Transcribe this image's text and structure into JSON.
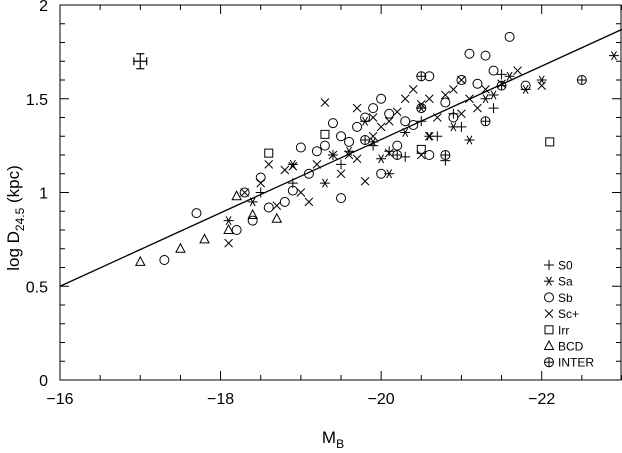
{
  "chart_data": {
    "type": "scatter",
    "title": "",
    "xlabel": {
      "main": "M",
      "sub": "B"
    },
    "ylabel": {
      "pre": "log D",
      "sub": "24.5",
      "post": " (kpc)"
    },
    "xlim": [
      -16,
      -23
    ],
    "ylim": [
      0,
      2
    ],
    "xticks": [
      -16,
      -18,
      -20,
      -22
    ],
    "xtick_labels": [
      "−16",
      "−18",
      "−20",
      "−22"
    ],
    "yticks": [
      0,
      0.5,
      1,
      1.5,
      2
    ],
    "ytick_labels": [
      "0",
      "0.5",
      "1",
      "1.5",
      "2"
    ],
    "grid": false,
    "legend_position": "bottom-right",
    "fit_line": {
      "x": [
        -16,
        -23
      ],
      "y": [
        0.5,
        1.87
      ]
    },
    "error_bar": {
      "x": -17,
      "y": 1.7,
      "xerr": 0.08,
      "yerr": 0.04
    },
    "series": [
      {
        "name": "S0",
        "marker": "plus",
        "points": [
          [
            -18.5,
            1.0
          ],
          [
            -19.4,
            1.2
          ],
          [
            -19.9,
            1.25
          ],
          [
            -20.1,
            1.22
          ],
          [
            -20.3,
            1.19
          ],
          [
            -20.8,
            1.17
          ],
          [
            -20.5,
            1.38
          ],
          [
            -20.9,
            1.42
          ],
          [
            -21.4,
            1.45
          ],
          [
            -21.5,
            1.63
          ],
          [
            -19.5,
            1.15
          ],
          [
            -18.9,
            1.05
          ],
          [
            -20.7,
            1.3
          ],
          [
            -21.0,
            1.35
          ]
        ]
      },
      {
        "name": "Sa",
        "marker": "asterisk",
        "points": [
          [
            -18.1,
            0.85
          ],
          [
            -18.4,
            0.95
          ],
          [
            -18.9,
            1.15
          ],
          [
            -19.3,
            1.05
          ],
          [
            -19.6,
            1.22
          ],
          [
            -19.9,
            1.27
          ],
          [
            -20.1,
            1.1
          ],
          [
            -20.3,
            1.32
          ],
          [
            -20.6,
            1.3
          ],
          [
            -20.9,
            1.35
          ],
          [
            -21.1,
            1.28
          ],
          [
            -21.3,
            1.5
          ],
          [
            -21.6,
            1.62
          ],
          [
            -21.8,
            1.55
          ],
          [
            -22.0,
            1.6
          ],
          [
            -22.9,
            1.73
          ],
          [
            -19.8,
            1.38
          ],
          [
            -20.5,
            1.45
          ],
          [
            -21.4,
            1.52
          ],
          [
            -20.0,
            1.18
          ]
        ]
      },
      {
        "name": "Sb",
        "marker": "circle",
        "points": [
          [
            -17.3,
            0.64
          ],
          [
            -17.7,
            0.89
          ],
          [
            -18.2,
            0.8
          ],
          [
            -18.4,
            0.85
          ],
          [
            -18.6,
            0.92
          ],
          [
            -18.8,
            0.95
          ],
          [
            -18.9,
            1.01
          ],
          [
            -19.1,
            1.1
          ],
          [
            -19.0,
            1.24
          ],
          [
            -19.2,
            1.22
          ],
          [
            -19.3,
            1.25
          ],
          [
            -19.5,
            1.3
          ],
          [
            -19.6,
            1.27
          ],
          [
            -19.7,
            1.35
          ],
          [
            -19.8,
            1.4
          ],
          [
            -19.9,
            1.45
          ],
          [
            -20.0,
            1.5
          ],
          [
            -20.1,
            1.42
          ],
          [
            -20.2,
            1.25
          ],
          [
            -20.3,
            1.38
          ],
          [
            -20.4,
            1.36
          ],
          [
            -20.5,
            1.45
          ],
          [
            -20.6,
            1.62
          ],
          [
            -20.8,
            1.48
          ],
          [
            -20.9,
            1.4
          ],
          [
            -21.0,
            1.6
          ],
          [
            -21.1,
            1.74
          ],
          [
            -21.2,
            1.58
          ],
          [
            -21.3,
            1.73
          ],
          [
            -21.4,
            1.65
          ],
          [
            -21.6,
            1.83
          ],
          [
            -21.8,
            1.57
          ],
          [
            -19.5,
            0.97
          ],
          [
            -18.5,
            1.08
          ],
          [
            -18.3,
            1.0
          ],
          [
            -19.4,
            1.37
          ],
          [
            -20.0,
            1.1
          ],
          [
            -20.6,
            1.2
          ]
        ]
      },
      {
        "name": "Sc+",
        "marker": "cross",
        "points": [
          [
            -18.1,
            0.73
          ],
          [
            -18.3,
            1.0
          ],
          [
            -18.5,
            1.05
          ],
          [
            -18.7,
            0.93
          ],
          [
            -18.8,
            1.12
          ],
          [
            -18.9,
            1.14
          ],
          [
            -19.0,
            1.0
          ],
          [
            -19.1,
            0.95
          ],
          [
            -19.2,
            1.15
          ],
          [
            -19.3,
            1.48
          ],
          [
            -19.4,
            1.2
          ],
          [
            -19.5,
            1.1
          ],
          [
            -19.6,
            1.2
          ],
          [
            -19.7,
            1.18
          ],
          [
            -19.8,
            1.06
          ],
          [
            -19.9,
            1.3
          ],
          [
            -20.0,
            1.35
          ],
          [
            -20.1,
            1.38
          ],
          [
            -20.2,
            1.43
          ],
          [
            -20.3,
            1.5
          ],
          [
            -20.4,
            1.55
          ],
          [
            -20.5,
            1.47
          ],
          [
            -20.6,
            1.5
          ],
          [
            -20.7,
            1.4
          ],
          [
            -20.8,
            1.52
          ],
          [
            -20.9,
            1.55
          ],
          [
            -21.0,
            1.6
          ],
          [
            -21.1,
            1.5
          ],
          [
            -21.2,
            1.45
          ],
          [
            -21.3,
            1.55
          ],
          [
            -21.5,
            1.58
          ],
          [
            -21.7,
            1.65
          ],
          [
            -22.0,
            1.57
          ],
          [
            -19.9,
            1.4
          ],
          [
            -20.6,
            1.3
          ],
          [
            -20.5,
            1.2
          ],
          [
            -18.6,
            1.15
          ],
          [
            -19.7,
            1.45
          ],
          [
            -20.1,
            1.21
          ],
          [
            -21.0,
            1.42
          ]
        ]
      },
      {
        "name": "Irr",
        "marker": "square",
        "points": [
          [
            -18.6,
            1.21
          ],
          [
            -19.3,
            1.31
          ],
          [
            -20.5,
            1.23
          ],
          [
            -22.1,
            1.27
          ]
        ]
      },
      {
        "name": "BCD",
        "marker": "triangle",
        "points": [
          [
            -17.0,
            0.63
          ],
          [
            -17.5,
            0.7
          ],
          [
            -17.8,
            0.75
          ],
          [
            -18.1,
            0.8
          ],
          [
            -18.2,
            0.98
          ],
          [
            -18.4,
            0.88
          ],
          [
            -18.7,
            0.86
          ]
        ]
      },
      {
        "name": "INTER",
        "marker": "circle-plus",
        "points": [
          [
            -20.2,
            1.2
          ],
          [
            -20.5,
            1.62
          ],
          [
            -20.8,
            1.2
          ],
          [
            -21.3,
            1.38
          ],
          [
            -21.5,
            1.57
          ],
          [
            -22.5,
            1.6
          ],
          [
            -19.8,
            1.28
          ]
        ]
      }
    ]
  }
}
